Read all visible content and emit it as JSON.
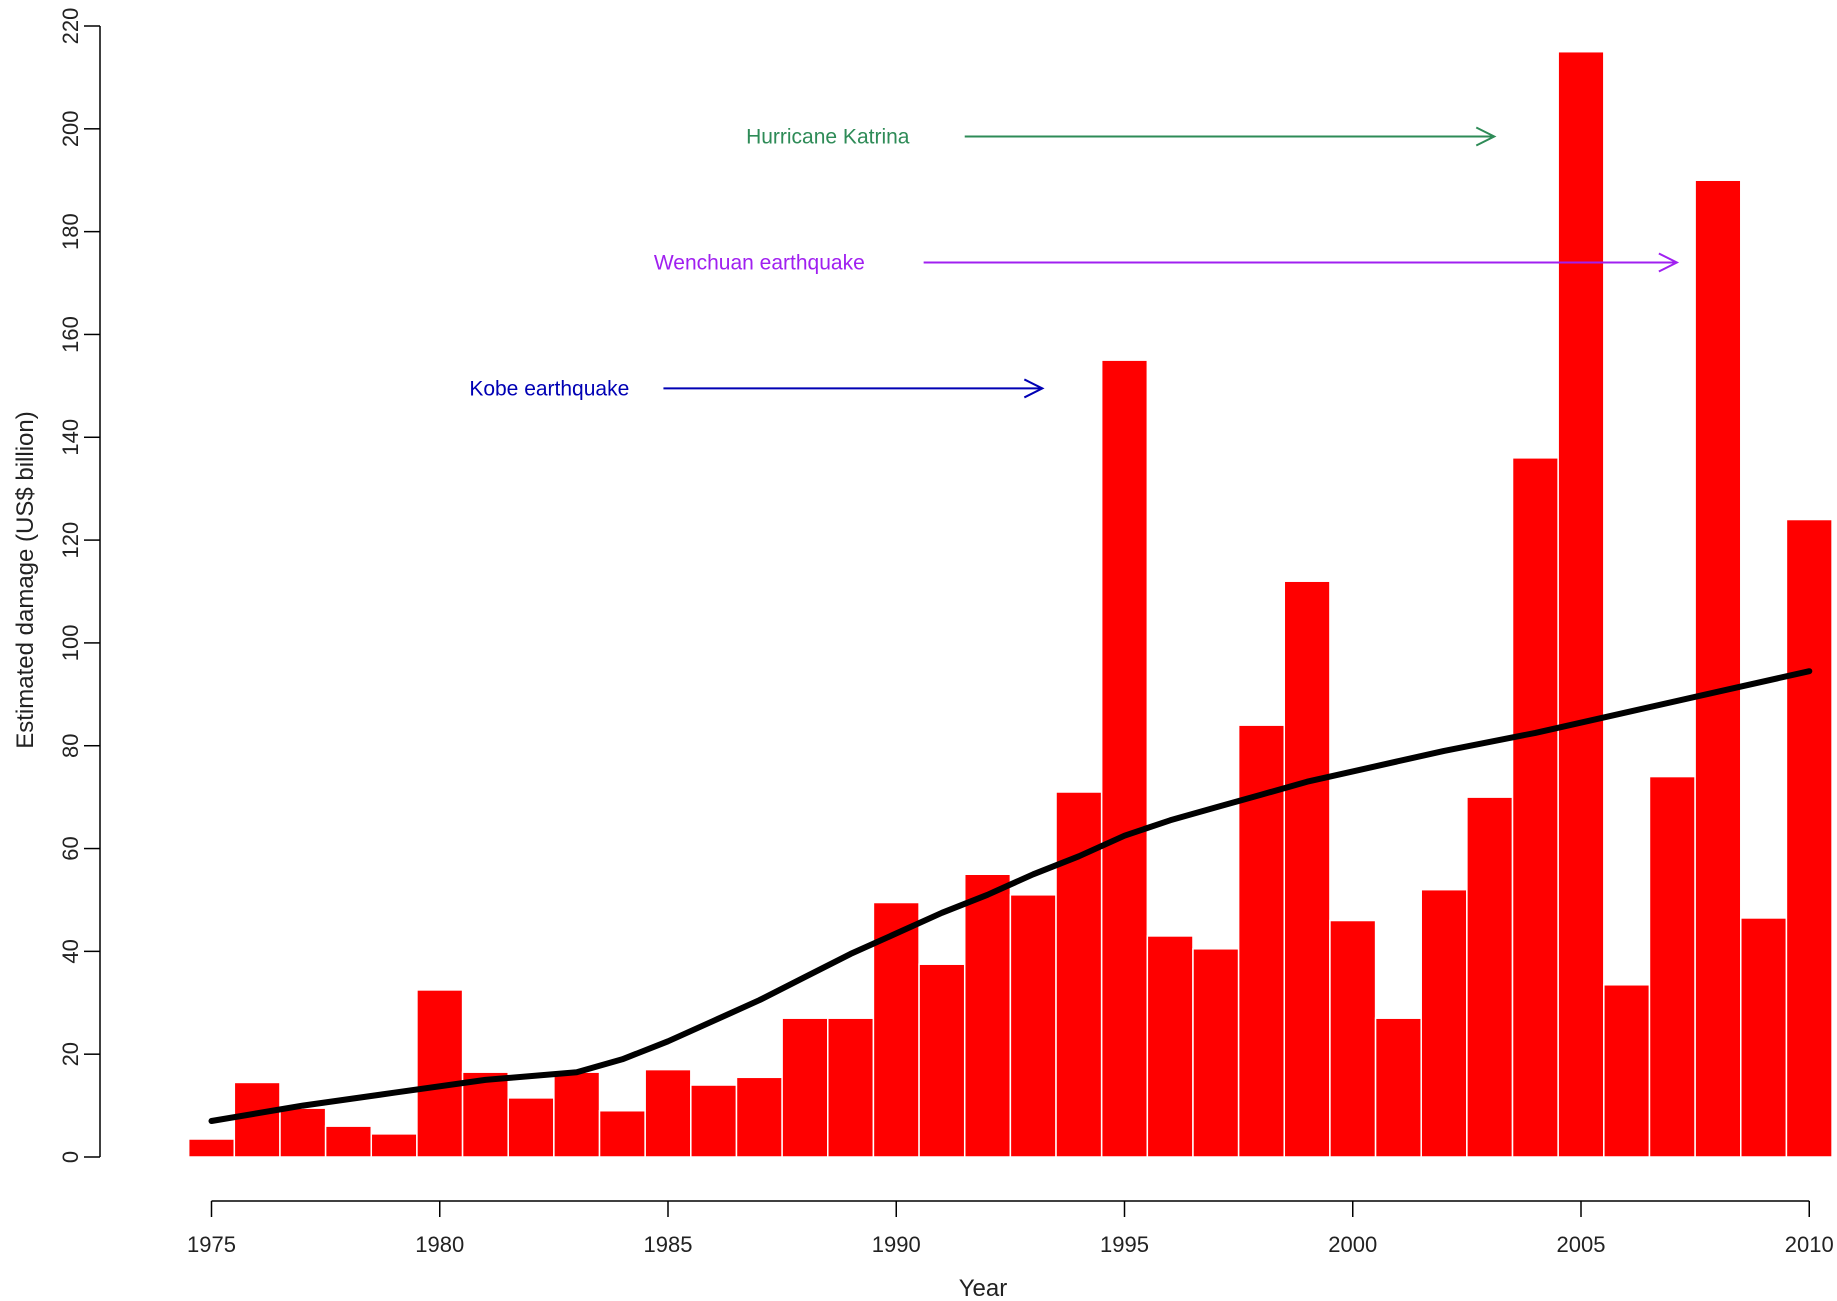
{
  "chart_data": {
    "type": "bar",
    "xlabel": "Year",
    "ylabel": "Estimated damage (US$ billion)",
    "xlim": [
      1974.5,
      2010.5
    ],
    "ylim": [
      -8,
      220
    ],
    "x_ticks": [
      1975,
      1980,
      1985,
      1990,
      1995,
      2000,
      2005,
      2010
    ],
    "y_ticks": [
      0,
      20,
      40,
      60,
      80,
      100,
      120,
      140,
      160,
      180,
      200,
      220
    ],
    "grid": false,
    "bar_color": "#ff0000",
    "trend_color": "#000000",
    "years": [
      1975,
      1976,
      1977,
      1978,
      1979,
      1980,
      1981,
      1982,
      1983,
      1984,
      1985,
      1986,
      1987,
      1988,
      1989,
      1990,
      1991,
      1992,
      1993,
      1994,
      1995,
      1996,
      1997,
      1998,
      1999,
      2000,
      2001,
      2002,
      2003,
      2004,
      2005,
      2006,
      2007,
      2008,
      2009,
      2010
    ],
    "values": [
      3.5,
      14.5,
      9.5,
      6,
      4.5,
      32.5,
      16.5,
      11.5,
      16.5,
      9,
      17,
      14,
      15.5,
      27,
      27,
      49.5,
      37.5,
      55,
      51,
      71,
      155,
      43,
      40.5,
      84,
      112,
      46,
      27,
      52,
      70,
      136,
      215,
      33.5,
      74,
      190,
      46.5,
      124
    ],
    "trend": {
      "x": [
        1975,
        1977,
        1979,
        1981,
        1983,
        1984,
        1985,
        1986,
        1987,
        1988,
        1989,
        1990,
        1991,
        1992,
        1993,
        1994,
        1995,
        1996,
        1997,
        1998,
        1999,
        2000,
        2002,
        2004,
        2006,
        2008,
        2010
      ],
      "y": [
        7,
        10,
        12.5,
        15,
        16.5,
        19,
        22.5,
        26.5,
        30.5,
        35,
        39.5,
        43.5,
        47.5,
        51,
        55,
        58.5,
        62.5,
        65.5,
        68,
        70.5,
        73,
        75,
        79,
        82.5,
        86.5,
        90.5,
        94.5
      ]
    },
    "annotations": [
      {
        "text": "Hurricane Katrina",
        "color": "#2e8b57",
        "label_x": 1988.5,
        "y": 198.5,
        "arrow_from": 1991.5,
        "arrow_to": 2003.1
      },
      {
        "text": "Wenchuan earthquake",
        "color": "#a020f0",
        "label_x": 1987,
        "y": 174,
        "arrow_from": 1990.6,
        "arrow_to": 2007.1
      },
      {
        "text": "Kobe earthquake",
        "color": "#0000b4",
        "label_x": 1982.4,
        "y": 149.5,
        "arrow_from": 1984.9,
        "arrow_to": 1993.2
      }
    ]
  }
}
